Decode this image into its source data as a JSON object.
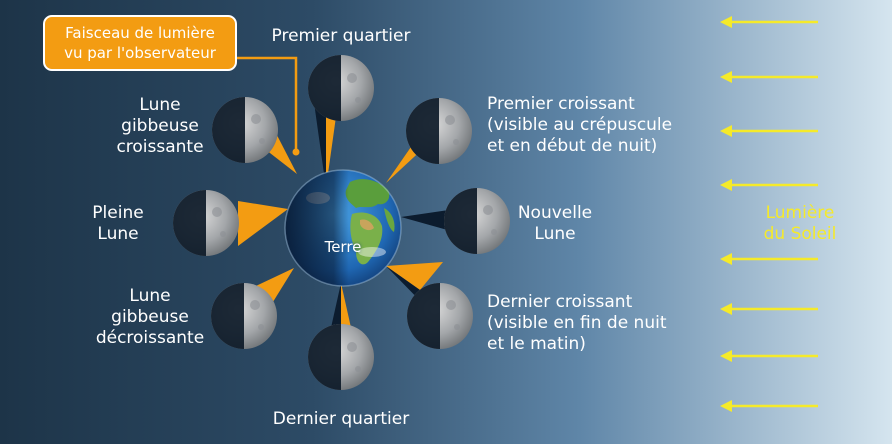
{
  "callout": {
    "lines": [
      "Faisceau de lumière",
      "vu par l'observateur"
    ]
  },
  "earth_label": "Terre",
  "sun_label": {
    "lines": [
      "Lumière",
      "du Soleil"
    ]
  },
  "phases": {
    "premier_quartier": {
      "lines": [
        "Premier quartier"
      ]
    },
    "premier_croissant": {
      "lines": [
        "Premier croissant",
        "(visible au crépuscule",
        "et en début de nuit)"
      ]
    },
    "nouvelle_lune": {
      "lines": [
        "Nouvelle",
        "Lune"
      ]
    },
    "dernier_croissant": {
      "lines": [
        "Dernier croissant",
        "(visible en fin de nuit",
        "et le matin)"
      ]
    },
    "dernier_quartier": {
      "lines": [
        "Dernier quartier"
      ]
    },
    "gibbeuse_decroissante": {
      "lines": [
        "Lune",
        "gibbeuse",
        "décroissante"
      ]
    },
    "pleine_lune": {
      "lines": [
        "Pleine",
        "Lune"
      ]
    },
    "gibbeuse_croissante": {
      "lines": [
        "Lune",
        "gibbeuse",
        "croissante"
      ]
    }
  },
  "colors": {
    "beam": "#f39c12",
    "sunlight_arrow": "#f5ea2a",
    "callout_bg": "#f39c12",
    "sky_dark": "#1d3448",
    "sky_light": "#c7dcea"
  },
  "icons": {
    "earth": "earth-globe",
    "moon": "moon-phase",
    "arrow": "sunlight-arrow"
  }
}
